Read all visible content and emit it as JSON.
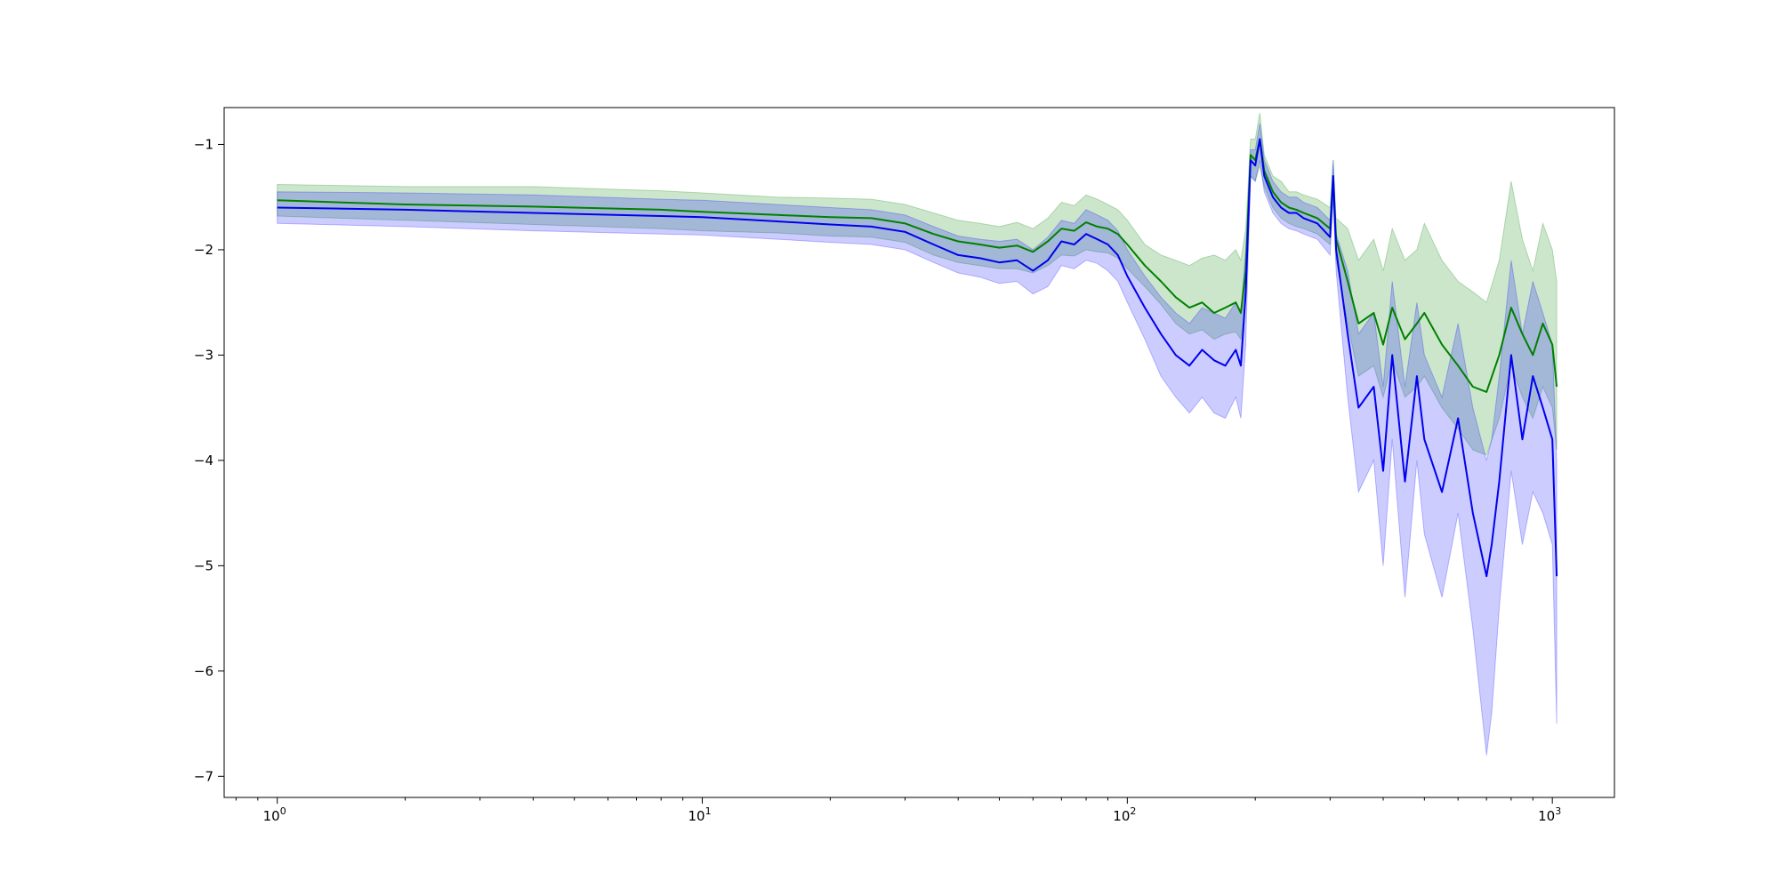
{
  "chart_data": {
    "type": "line",
    "title": "",
    "xlabel": "",
    "ylabel": "",
    "xscale": "log",
    "xlim": [
      0.75,
      1400
    ],
    "ylim": [
      -7.2,
      -0.65
    ],
    "x_ticks": [
      {
        "value": 1,
        "base": "10",
        "exp": "0"
      },
      {
        "value": 10,
        "base": "10",
        "exp": "1"
      },
      {
        "value": 100,
        "base": "10",
        "exp": "2"
      },
      {
        "value": 1000,
        "base": "10",
        "exp": "3"
      }
    ],
    "y_ticks": [
      {
        "value": -1,
        "label": "−1"
      },
      {
        "value": -2,
        "label": "−2"
      },
      {
        "value": -3,
        "label": "−3"
      },
      {
        "value": -4,
        "label": "−4"
      },
      {
        "value": -5,
        "label": "−5"
      },
      {
        "value": -6,
        "label": "−6"
      },
      {
        "value": -7,
        "label": "−7"
      }
    ],
    "grid": false,
    "legend": "none",
    "series": [
      {
        "color": "#008000",
        "band_color": "#008000",
        "x": [
          1,
          2,
          4,
          8,
          10,
          15,
          20,
          25,
          30,
          35,
          40,
          45,
          50,
          55,
          60,
          65,
          70,
          75,
          80,
          85,
          90,
          95,
          100,
          110,
          120,
          130,
          140,
          150,
          160,
          170,
          180,
          185,
          190,
          195,
          200,
          205,
          210,
          220,
          230,
          240,
          250,
          260,
          280,
          300,
          305,
          310,
          330,
          350,
          380,
          400,
          420,
          450,
          480,
          500,
          550,
          600,
          650,
          700,
          750,
          800,
          850,
          900,
          950,
          1000,
          1024
        ],
        "y": [
          -1.53,
          -1.57,
          -1.59,
          -1.62,
          -1.64,
          -1.67,
          -1.69,
          -1.7,
          -1.75,
          -1.85,
          -1.92,
          -1.95,
          -1.98,
          -1.96,
          -2.02,
          -1.92,
          -1.8,
          -1.82,
          -1.74,
          -1.78,
          -1.8,
          -1.85,
          -1.95,
          -2.15,
          -2.3,
          -2.45,
          -2.55,
          -2.5,
          -2.6,
          -2.55,
          -2.5,
          -2.6,
          -2.2,
          -1.1,
          -1.15,
          -0.95,
          -1.25,
          -1.45,
          -1.55,
          -1.6,
          -1.62,
          -1.65,
          -1.7,
          -1.8,
          -1.3,
          -1.9,
          -2.3,
          -2.7,
          -2.6,
          -2.9,
          -2.55,
          -2.85,
          -2.7,
          -2.6,
          -2.9,
          -3.1,
          -3.3,
          -3.35,
          -3.0,
          -2.55,
          -2.8,
          -3.0,
          -2.7,
          -2.9,
          -3.3
        ],
        "upper": [
          -1.38,
          -1.4,
          -1.4,
          -1.44,
          -1.46,
          -1.5,
          -1.51,
          -1.52,
          -1.57,
          -1.65,
          -1.72,
          -1.75,
          -1.78,
          -1.74,
          -1.8,
          -1.7,
          -1.55,
          -1.58,
          -1.48,
          -1.52,
          -1.57,
          -1.62,
          -1.72,
          -1.95,
          -2.05,
          -2.1,
          -2.15,
          -2.08,
          -2.05,
          -2.1,
          -2.0,
          -2.1,
          -1.8,
          -0.95,
          -0.95,
          -0.7,
          -1.1,
          -1.3,
          -1.35,
          -1.45,
          -1.45,
          -1.48,
          -1.52,
          -1.6,
          -1.15,
          -1.7,
          -1.8,
          -2.1,
          -1.9,
          -2.2,
          -1.8,
          -2.1,
          -2.0,
          -1.75,
          -2.1,
          -2.3,
          -2.4,
          -2.5,
          -2.1,
          -1.35,
          -1.9,
          -2.2,
          -1.75,
          -2.0,
          -2.3
        ],
        "lower": [
          -1.68,
          -1.72,
          -1.76,
          -1.8,
          -1.82,
          -1.84,
          -1.87,
          -1.88,
          -1.93,
          -2.05,
          -2.12,
          -2.15,
          -2.18,
          -2.18,
          -2.22,
          -2.15,
          -2.05,
          -2.06,
          -2.0,
          -2.02,
          -2.03,
          -2.08,
          -2.18,
          -2.35,
          -2.52,
          -2.7,
          -2.8,
          -2.76,
          -2.85,
          -2.8,
          -2.78,
          -2.85,
          -2.5,
          -1.3,
          -1.35,
          -1.2,
          -1.4,
          -1.6,
          -1.7,
          -1.75,
          -1.78,
          -1.8,
          -1.85,
          -1.95,
          -1.5,
          -2.1,
          -2.7,
          -3.2,
          -3.1,
          -3.4,
          -3.05,
          -3.4,
          -3.3,
          -3.2,
          -3.5,
          -3.7,
          -3.9,
          -3.95,
          -3.6,
          -3.1,
          -3.4,
          -3.6,
          -3.3,
          -3.5,
          -3.9
        ]
      },
      {
        "color": "#0000ee",
        "band_color": "#0000ff",
        "x": [
          1,
          2,
          4,
          8,
          10,
          15,
          20,
          25,
          30,
          35,
          40,
          45,
          50,
          55,
          60,
          65,
          70,
          75,
          80,
          85,
          90,
          95,
          100,
          110,
          120,
          130,
          140,
          150,
          160,
          170,
          180,
          185,
          190,
          195,
          200,
          205,
          210,
          220,
          230,
          240,
          250,
          260,
          280,
          300,
          305,
          310,
          330,
          350,
          380,
          400,
          420,
          450,
          480,
          500,
          550,
          600,
          650,
          700,
          720,
          750,
          800,
          850,
          900,
          950,
          1000,
          1024
        ],
        "y": [
          -1.6,
          -1.62,
          -1.65,
          -1.68,
          -1.69,
          -1.73,
          -1.76,
          -1.78,
          -1.83,
          -1.95,
          -2.05,
          -2.08,
          -2.12,
          -2.1,
          -2.2,
          -2.1,
          -1.92,
          -1.95,
          -1.85,
          -1.9,
          -1.95,
          -2.05,
          -2.25,
          -2.55,
          -2.8,
          -3.0,
          -3.1,
          -2.95,
          -3.05,
          -3.1,
          -2.95,
          -3.1,
          -2.4,
          -1.15,
          -1.2,
          -0.95,
          -1.3,
          -1.5,
          -1.6,
          -1.65,
          -1.65,
          -1.7,
          -1.75,
          -1.88,
          -1.3,
          -2.0,
          -2.8,
          -3.5,
          -3.3,
          -4.1,
          -3.0,
          -4.2,
          -3.2,
          -3.8,
          -4.3,
          -3.6,
          -4.5,
          -5.1,
          -4.8,
          -4.2,
          -3.0,
          -3.8,
          -3.2,
          -3.5,
          -3.8,
          -5.1
        ],
        "upper": [
          -1.45,
          -1.46,
          -1.48,
          -1.52,
          -1.53,
          -1.57,
          -1.6,
          -1.62,
          -1.67,
          -1.78,
          -1.87,
          -1.9,
          -1.92,
          -1.9,
          -2.0,
          -1.88,
          -1.72,
          -1.75,
          -1.62,
          -1.67,
          -1.72,
          -1.82,
          -2.0,
          -2.25,
          -2.45,
          -2.6,
          -2.7,
          -2.55,
          -2.6,
          -2.65,
          -2.5,
          -2.6,
          -2.0,
          -1.05,
          -1.05,
          -0.8,
          -1.15,
          -1.35,
          -1.45,
          -1.5,
          -1.5,
          -1.55,
          -1.6,
          -1.72,
          -1.15,
          -1.85,
          -2.2,
          -2.8,
          -2.6,
          -3.3,
          -2.3,
          -3.3,
          -2.5,
          -3.0,
          -3.4,
          -2.7,
          -3.5,
          -4.0,
          -3.8,
          -3.2,
          -2.1,
          -2.8,
          -2.3,
          -2.6,
          -2.9,
          -4.0
        ],
        "lower": [
          -1.75,
          -1.78,
          -1.82,
          -1.85,
          -1.86,
          -1.9,
          -1.93,
          -1.95,
          -2.0,
          -2.12,
          -2.22,
          -2.26,
          -2.32,
          -2.3,
          -2.42,
          -2.35,
          -2.15,
          -2.18,
          -2.1,
          -2.13,
          -2.2,
          -2.3,
          -2.5,
          -2.85,
          -3.2,
          -3.4,
          -3.55,
          -3.4,
          -3.55,
          -3.6,
          -3.4,
          -3.6,
          -2.9,
          -1.3,
          -1.35,
          -1.15,
          -1.45,
          -1.65,
          -1.75,
          -1.8,
          -1.82,
          -1.85,
          -1.9,
          -2.05,
          -1.5,
          -2.2,
          -3.4,
          -4.3,
          -4.0,
          -5.0,
          -3.8,
          -5.3,
          -4.0,
          -4.7,
          -5.3,
          -4.5,
          -5.6,
          -6.8,
          -6.4,
          -5.4,
          -4.1,
          -4.8,
          -4.3,
          -4.5,
          -4.8,
          -6.5
        ]
      }
    ]
  }
}
